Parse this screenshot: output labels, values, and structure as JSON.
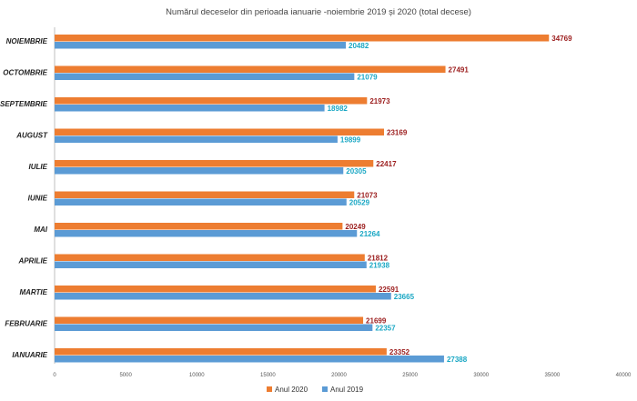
{
  "chart_data": {
    "type": "bar",
    "orientation": "horizontal",
    "title": "Numărul deceselor din perioada ianuarie -noiembrie 2019 și 2020 (total decese)",
    "categories": [
      "NOIEMBRIE",
      "OCTOMBRIE",
      "SEPTEMBRIE",
      "AUGUST",
      "IULIE",
      "IUNIE",
      "MAI",
      "APRILIE",
      "MARTIE",
      "FEBRUARIE",
      "IANUARIE"
    ],
    "series": [
      {
        "name": "Anul 2020",
        "color": "#ed7d31",
        "label_color": "#9b1c1c",
        "values": [
          34769,
          27491,
          21973,
          23169,
          22417,
          21073,
          20249,
          21812,
          22591,
          21699,
          23352
        ]
      },
      {
        "name": "Anul 2019",
        "color": "#5b9bd5",
        "label_color": "#1aa7c4",
        "values": [
          20482,
          21079,
          18982,
          19899,
          20305,
          20529,
          21264,
          21938,
          23665,
          22357,
          27388
        ]
      }
    ],
    "xlim": [
      0,
      40000
    ],
    "xticks": [
      0,
      5000,
      10000,
      15000,
      20000,
      25000,
      30000,
      35000,
      40000
    ],
    "legend_position": "bottom"
  }
}
